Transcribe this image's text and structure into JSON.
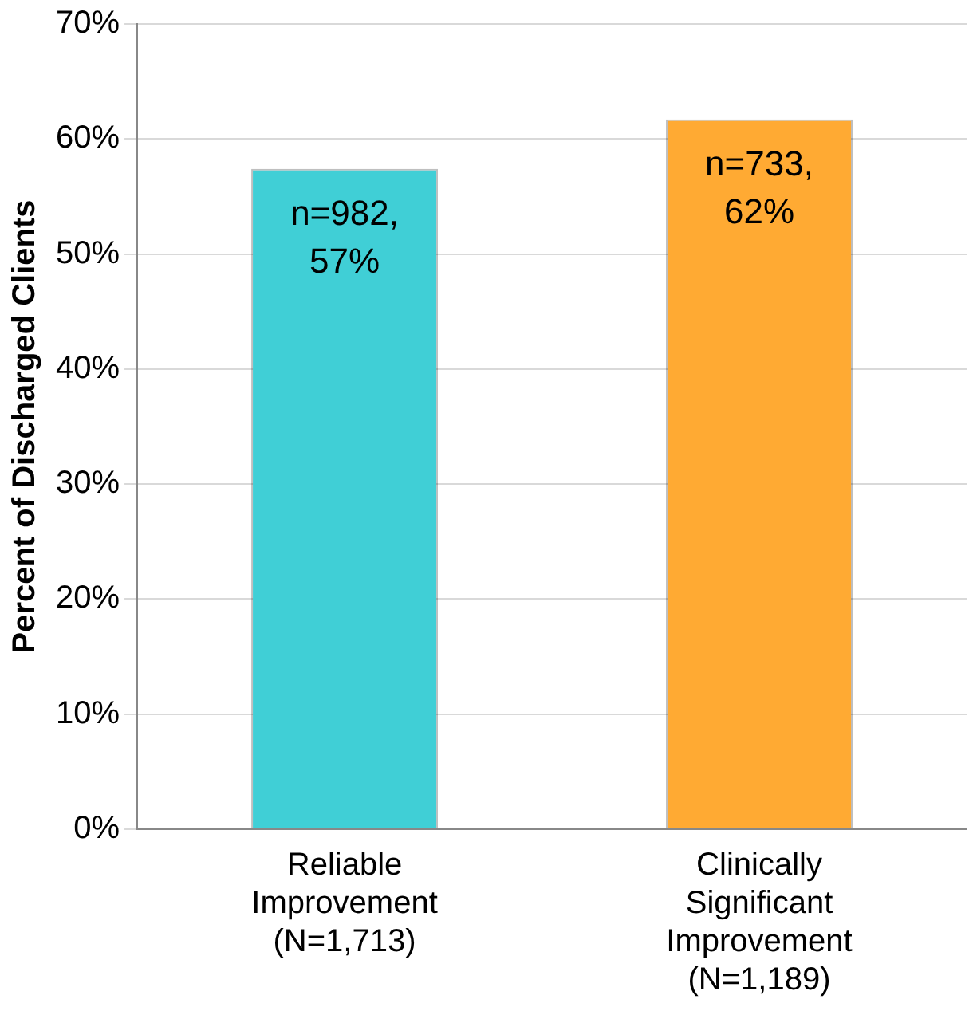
{
  "chart_data": {
    "type": "bar",
    "ylabel": "Percent of Discharged Clients",
    "categories": [
      "Reliable Improvement (N=1,713)",
      "Clinically Significant Improvement (N=1,189)"
    ],
    "values": [
      57.4,
      61.7
    ],
    "colors": [
      "#40cfd6",
      "#ffaa33"
    ],
    "value_labels": [
      "n=982, 57%",
      "n=733, 62%"
    ],
    "ylim": [
      0,
      70
    ],
    "yticks": [
      {
        "value": 0,
        "label": "0%"
      },
      {
        "value": 10,
        "label": "10%"
      },
      {
        "value": 20,
        "label": "20%"
      },
      {
        "value": 30,
        "label": "30%"
      },
      {
        "value": 40,
        "label": "40%"
      },
      {
        "value": 50,
        "label": "50%"
      },
      {
        "value": 60,
        "label": "60%"
      },
      {
        "value": 70,
        "label": "70%"
      }
    ],
    "grid": "y",
    "legend": false
  }
}
